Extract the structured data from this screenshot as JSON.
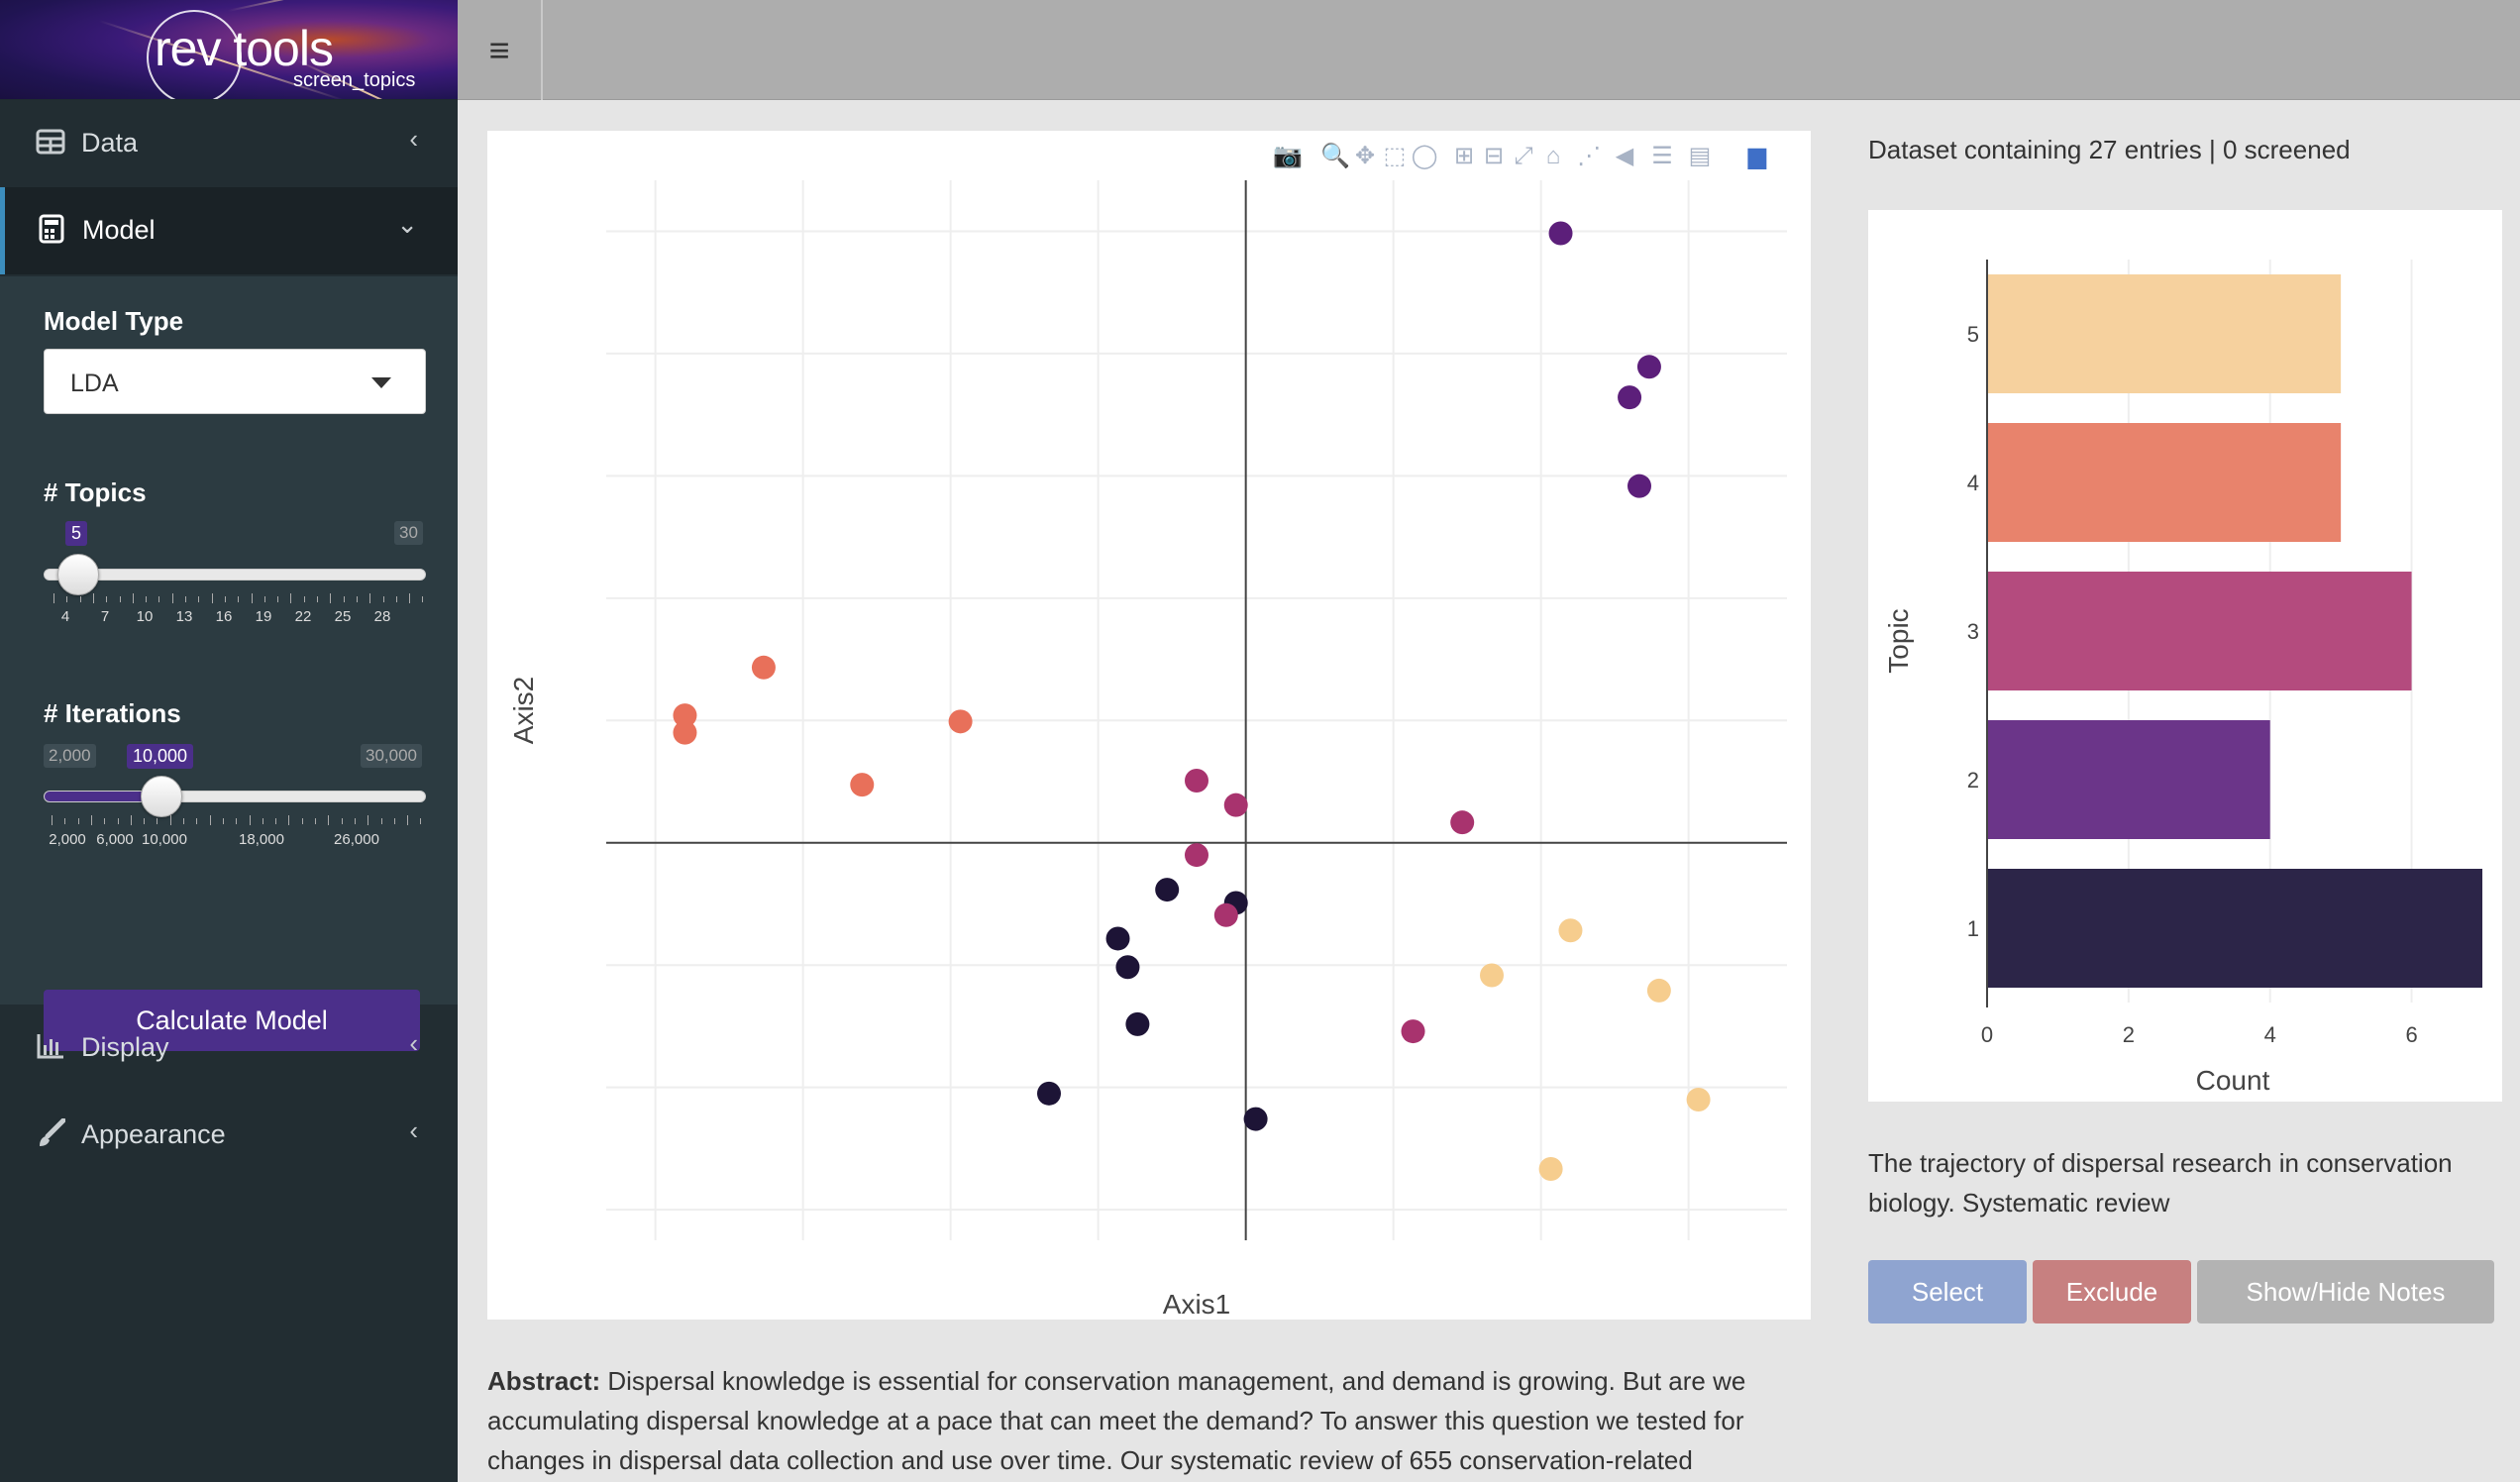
{
  "logo": {
    "brand": "rev tools",
    "subtitle": "screen_topics"
  },
  "topbar": {
    "menu_icon": "hamburger-icon",
    "menu_glyph": "≡"
  },
  "sidebar": {
    "items": [
      {
        "label": "Data",
        "icon": "table-icon"
      },
      {
        "label": "Model",
        "icon": "calculator-icon"
      },
      {
        "label": "Display",
        "icon": "bar-chart-icon"
      },
      {
        "label": "Appearance",
        "icon": "brush-icon"
      }
    ],
    "model_panel": {
      "model_type_label": "Model Type",
      "model_type_value": "LDA",
      "topics_label": "# Topics",
      "topics_value": "5",
      "topics_max": "30",
      "topics_ticks": [
        "4",
        "7",
        "10",
        "13",
        "16",
        "19",
        "22",
        "25",
        "28"
      ],
      "iterations_label": "# Iterations",
      "iterations_value": "10,000",
      "iterations_min": "2,000",
      "iterations_max": "30,000",
      "iterations_ticks": [
        "2,000",
        "6,000",
        "10,000",
        "18,000",
        "26,000"
      ],
      "calculate_label": "Calculate Model"
    }
  },
  "scatter": {
    "xlabel": "Axis1",
    "ylabel": "Axis2",
    "modebar_icons": [
      "camera-icon",
      "zoom-icon",
      "pan-icon",
      "box-select-icon",
      "lasso-icon",
      "zoom-in-icon",
      "zoom-out-icon",
      "autoscale-icon",
      "home-icon",
      "spike-lines-icon",
      "hover-closest-icon",
      "hover-compare-icon",
      "guide-icon",
      "plotly-logo-icon"
    ]
  },
  "right_panel": {
    "dataset_info": "Dataset containing 27 entries | 0 screened",
    "article_title": "The trajectory of dispersal research in conservation biology. Systematic review",
    "select_label": "Select",
    "exclude_label": "Exclude",
    "notes_label": "Show/Hide Notes"
  },
  "abstract": {
    "label": "Abstract:",
    "text": "Dispersal knowledge is essential for conservation management, and demand is growing. But are we accumulating dispersal knowledge at a pace that can meet the demand? To answer this question we tested for changes in dispersal data collection and use over time. Our systematic review of 655 conservation-related"
  },
  "colors": {
    "topic1": "#1d1436",
    "topic2": "#5c1f7a",
    "topic3": "#a8336e",
    "topic4": "#e8705a",
    "topic5": "#f6cd8e",
    "bar1": "#2c2548",
    "bar2": "#6b3589",
    "bar3": "#b44b7e",
    "bar4": "#e8836c",
    "bar5": "#f6d19e",
    "accent": "#4b2f8a"
  },
  "chart_data": [
    {
      "type": "scatter",
      "xlabel": "Axis1",
      "ylabel": "Axis2",
      "series": [
        {
          "name": "1",
          "points": [
            [
              -0.13,
              -0.94
            ],
            [
              -0.12,
              -1.22
            ],
            [
              -0.11,
              -1.78
            ],
            [
              -0.08,
              -0.46
            ],
            [
              -0.01,
              -0.59
            ],
            [
              -0.2,
              -2.46
            ],
            [
              0.01,
              -2.71
            ]
          ]
        },
        {
          "name": "2",
          "points": [
            [
              0.32,
              5.98
            ],
            [
              0.39,
              4.37
            ],
            [
              0.4,
              3.5
            ],
            [
              0.41,
              4.67
            ]
          ]
        },
        {
          "name": "3",
          "points": [
            [
              -0.05,
              0.61
            ],
            [
              -0.01,
              0.37
            ],
            [
              -0.05,
              -0.12
            ],
            [
              -0.02,
              -0.71
            ],
            [
              0.17,
              -1.85
            ],
            [
              0.22,
              0.2
            ]
          ]
        },
        {
          "name": "4",
          "points": [
            [
              -0.57,
              1.25
            ],
            [
              -0.57,
              1.08
            ],
            [
              -0.49,
              1.72
            ],
            [
              -0.39,
              0.57
            ],
            [
              -0.29,
              1.19
            ]
          ]
        },
        {
          "name": "5",
          "points": [
            [
              0.25,
              -1.3
            ],
            [
              0.33,
              -0.86
            ],
            [
              0.42,
              -1.45
            ],
            [
              0.46,
              -2.52
            ],
            [
              0.31,
              -3.2
            ]
          ]
        }
      ]
    },
    {
      "type": "bar",
      "orientation": "horizontal",
      "categories": [
        "1",
        "2",
        "3",
        "4",
        "5"
      ],
      "values": [
        7,
        4,
        6,
        5,
        5
      ],
      "xlabel": "Count",
      "ylabel": "Topic",
      "x_ticks": [
        "0",
        "2",
        "4",
        "6"
      ],
      "xlim": [
        0,
        7
      ]
    }
  ]
}
